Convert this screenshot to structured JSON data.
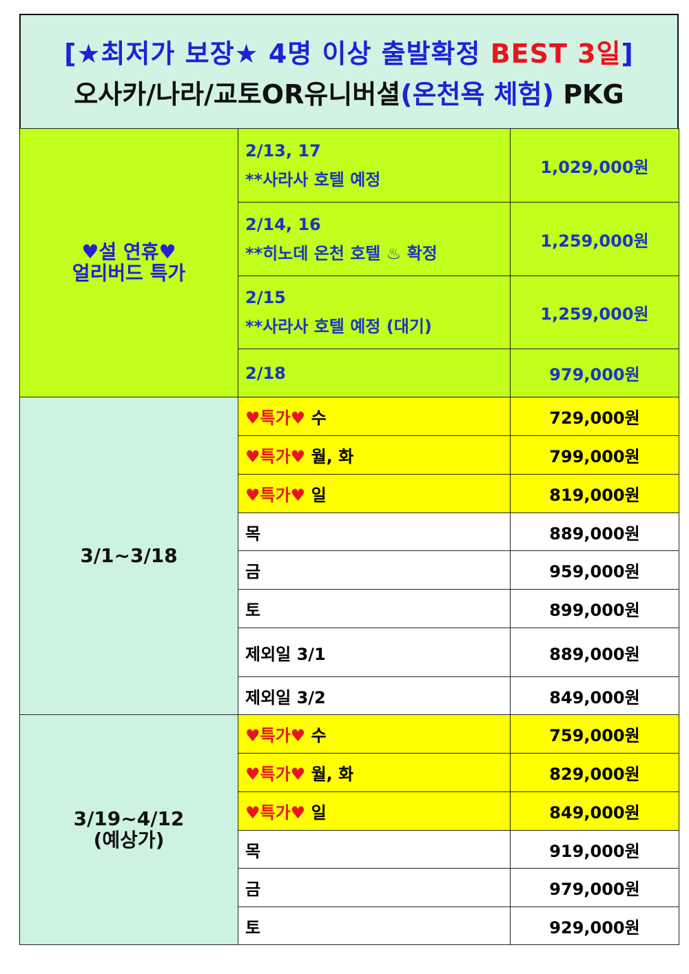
{
  "title": {
    "line1_blue": "[★최저가 보장★ 4명 이상 출발확정 ",
    "line1_red": "BEST 3일",
    "line1_end": "]",
    "line2_black": "오사카/나라/교토OR유니버셜",
    "line2_blue": "(온천욕 체험)",
    "line2_end": " PKG"
  },
  "colors": {
    "title_bg": "#d2f2e3",
    "early_bird_bg": "#c2ff1c",
    "special_bg": "#ffff00",
    "period_bg": "#cdf2e2",
    "blue_text": "#1f22d4",
    "red_text": "#e8141e"
  },
  "sections": [
    {
      "label_lines": [
        "♥설 연휴♥",
        "얼리버드 특가"
      ],
      "style": "green",
      "rows": [
        {
          "date": "2/13, 17",
          "note": "**사라사 호텔 예정",
          "price": "1,029,000원"
        },
        {
          "date": "2/14, 16",
          "note": "**히노데 온천 호텔 ♨ 확정",
          "price": "1,259,000원"
        },
        {
          "date": "2/15",
          "note": "**사라사 호텔 예정 (대기)",
          "price": "1,259,000원"
        },
        {
          "date": "2/18",
          "note": "",
          "price": "979,000원"
        }
      ]
    },
    {
      "label_lines": [
        "3/1~3/18"
      ],
      "style": "period",
      "rows": [
        {
          "special": "♥특가♥",
          "day": "수",
          "price": "729,000원"
        },
        {
          "special": "♥특가♥",
          "day": "월, 화",
          "price": "799,000원"
        },
        {
          "special": "♥특가♥",
          "day": "일",
          "price": "819,000원"
        },
        {
          "day": "목",
          "price": "889,000원"
        },
        {
          "day": "금",
          "price": "959,000원"
        },
        {
          "day": "토",
          "price": "899,000원"
        },
        {
          "day": "제외일 3/1",
          "price": "889,000원"
        },
        {
          "day": "제외일 3/2",
          "price": "849,000원"
        }
      ]
    },
    {
      "label_lines": [
        "3/19~4/12",
        "(예상가)"
      ],
      "style": "period",
      "rows": [
        {
          "special": "♥특가♥",
          "day": "수",
          "price": "759,000원"
        },
        {
          "special": "♥특가♥",
          "day": "월, 화",
          "price": "829,000원"
        },
        {
          "special": "♥특가♥",
          "day": "일",
          "price": "849,000원"
        },
        {
          "day": "목",
          "price": "919,000원"
        },
        {
          "day": "금",
          "price": "979,000원"
        },
        {
          "day": "토",
          "price": "929,000원"
        }
      ]
    }
  ]
}
